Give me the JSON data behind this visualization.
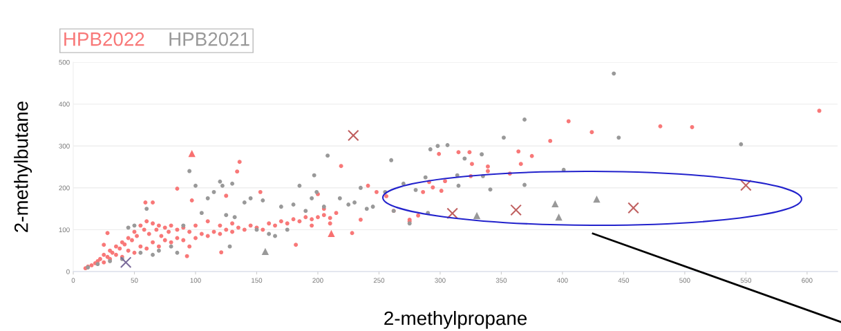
{
  "chart_data": {
    "type": "scatter",
    "xlabel": "2-methylpropane",
    "ylabel": "2-methylbutane",
    "xlim": [
      0,
      625
    ],
    "ylim": [
      0,
      500
    ],
    "xticks": [
      0,
      50,
      100,
      150,
      200,
      250,
      300,
      350,
      400,
      450,
      500,
      550,
      600
    ],
    "yticks": [
      0,
      100,
      200,
      300,
      400,
      500
    ],
    "grid": "y",
    "legend": "top left",
    "series": [
      {
        "name": "HPB2022",
        "color": "#f87878",
        "marker": "circle",
        "x": [
          10,
          12,
          15,
          18,
          20,
          22,
          25,
          25,
          28,
          30,
          30,
          32,
          35,
          35,
          38,
          40,
          40,
          42,
          45,
          45,
          48,
          50,
          50,
          52,
          55,
          55,
          58,
          60,
          60,
          62,
          65,
          65,
          68,
          70,
          70,
          72,
          75,
          75,
          78,
          80,
          80,
          85,
          85,
          90,
          90,
          95,
          95,
          100,
          100,
          105,
          110,
          110,
          115,
          120,
          120,
          125,
          130,
          130,
          135,
          140,
          145,
          150,
          155,
          160,
          165,
          170,
          175,
          180,
          185,
          190,
          195,
          200,
          205,
          210,
          215,
          136,
          134,
          85,
          59,
          65,
          97,
          125,
          153,
          182,
          121,
          93,
          28,
          25,
          219,
          241,
          248,
          256,
          228,
          235,
          262,
          275,
          275,
          282,
          286,
          291,
          294,
          299,
          301,
          304,
          315,
          324,
          326,
          325,
          339,
          339,
          357,
          364,
          366,
          375,
          390,
          405,
          424,
          480,
          506,
          610,
          200,
          205,
          210,
          195
        ],
        "values": [
          8,
          12,
          15,
          20,
          25,
          30,
          22,
          40,
          35,
          30,
          50,
          45,
          40,
          60,
          55,
          35,
          70,
          65,
          50,
          80,
          75,
          45,
          95,
          85,
          60,
          110,
          100,
          55,
          120,
          90,
          70,
          115,
          100,
          60,
          110,
          85,
          75,
          105,
          95,
          70,
          110,
          80,
          100,
          75,
          105,
          60,
          95,
          80,
          110,
          90,
          85,
          120,
          95,
          90,
          110,
          100,
          95,
          115,
          105,
          100,
          110,
          105,
          100,
          115,
          110,
          120,
          115,
          125,
          120,
          130,
          125,
          130,
          135,
          128,
          140,
          262,
          239,
          198,
          165,
          165,
          170,
          181,
          190,
          64,
          46,
          37,
          92,
          64,
          252,
          205,
          190,
          180,
          92,
          124,
          145,
          124,
          120,
          134,
          190,
          214,
          201,
          281,
          193,
          216,
          285,
          285,
          257,
          228,
          251,
          240,
          234,
          287,
          257,
          276,
          312,
          359,
          333,
          347,
          345,
          384,
          185,
          150,
          115,
          110
        ]
      },
      {
        "name": "HPB2021",
        "color": "#999999",
        "marker": "circle",
        "x": [
          12,
          20,
          30,
          40,
          45,
          50,
          55,
          60,
          65,
          70,
          80,
          85,
          90,
          95,
          100,
          105,
          110,
          115,
          120,
          122,
          125,
          128,
          130,
          132,
          140,
          145,
          150,
          155,
          160,
          165,
          170,
          175,
          180,
          185,
          190,
          195,
          197,
          199,
          205,
          208,
          218,
          225,
          230,
          235,
          240,
          245,
          255,
          260,
          262,
          270,
          275,
          280,
          288,
          292,
          298,
          306,
          314,
          320,
          334,
          335,
          341,
          352,
          369,
          369,
          401,
          442,
          446,
          546,
          290,
          315
        ],
        "values": [
          10,
          18,
          25,
          30,
          105,
          110,
          45,
          150,
          40,
          50,
          60,
          45,
          110,
          240,
          205,
          140,
          175,
          190,
          215,
          205,
          135,
          60,
          210,
          130,
          165,
          175,
          100,
          170,
          90,
          85,
          155,
          100,
          160,
          205,
          145,
          175,
          230,
          190,
          155,
          277,
          175,
          160,
          165,
          200,
          150,
          155,
          190,
          266,
          145,
          210,
          115,
          195,
          225,
          292,
          300,
          302,
          230,
          270,
          280,
          228,
          196,
          320,
          363,
          207,
          243,
          473,
          320,
          304,
          140,
          205
        ]
      },
      {
        "color": "#f87070",
        "marker": "triangle",
        "x": [
          97,
          211
        ],
        "values": [
          282,
          91
        ]
      },
      {
        "color": "#999999",
        "marker": "triangle",
        "x": [
          157,
          330,
          394,
          397,
          428
        ],
        "values": [
          48,
          134,
          162,
          130,
          173
        ]
      },
      {
        "color": "#c06060",
        "marker": "cross",
        "x": [
          229,
          310,
          362,
          458,
          550
        ],
        "values": [
          325,
          139,
          147,
          152,
          206
        ]
      },
      {
        "color": "#7a6a9a",
        "marker": "cross",
        "x": [
          43
        ],
        "values": [
          22
        ]
      }
    ]
  }
}
